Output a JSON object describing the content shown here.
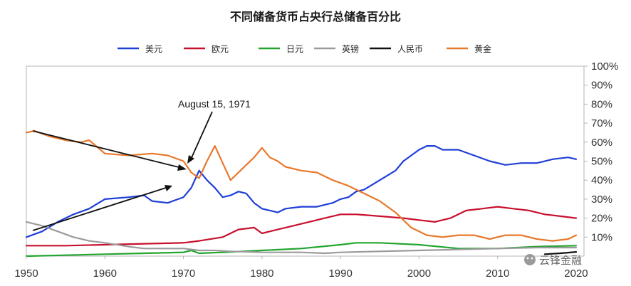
{
  "chart_data": {
    "type": "line",
    "title": "不同储备货币占央行总储备百分比",
    "xlim": [
      1950,
      2021
    ],
    "ylim": [
      0,
      100
    ],
    "x_ticks": [
      "1950",
      "1960",
      "1970",
      "1980",
      "1990",
      "2000",
      "2010",
      "2020"
    ],
    "y_ticks": [
      "10%",
      "20%",
      "30%",
      "40%",
      "50%",
      "60%",
      "70%",
      "80%",
      "90%",
      "100%"
    ],
    "y_axis_side": "right",
    "grid": false,
    "legend_position": "top",
    "annotation": {
      "text": "August 15, 1971",
      "x": 1971.6
    },
    "series": [
      {
        "name": "美元",
        "color": "#1e3fd8",
        "points": [
          [
            1950,
            10
          ],
          [
            1952,
            13
          ],
          [
            1954,
            18
          ],
          [
            1956,
            22
          ],
          [
            1958,
            25
          ],
          [
            1960,
            30
          ],
          [
            1963,
            31
          ],
          [
            1965,
            32
          ],
          [
            1966,
            29
          ],
          [
            1968,
            28
          ],
          [
            1970,
            31
          ],
          [
            1971,
            36
          ],
          [
            1972,
            45
          ],
          [
            1973,
            40
          ],
          [
            1974,
            36
          ],
          [
            1975,
            31
          ],
          [
            1976,
            32
          ],
          [
            1977,
            34
          ],
          [
            1978,
            33
          ],
          [
            1979,
            28
          ],
          [
            1980,
            25
          ],
          [
            1981,
            24
          ],
          [
            1982,
            23
          ],
          [
            1983,
            25
          ],
          [
            1985,
            26
          ],
          [
            1987,
            26
          ],
          [
            1989,
            28
          ],
          [
            1990,
            30
          ],
          [
            1991,
            31
          ],
          [
            1992,
            34
          ],
          [
            1993,
            35
          ],
          [
            1995,
            40
          ],
          [
            1997,
            45
          ],
          [
            1998,
            50
          ],
          [
            2000,
            56
          ],
          [
            2001,
            58
          ],
          [
            2002,
            58
          ],
          [
            2003,
            56
          ],
          [
            2005,
            56
          ],
          [
            2007,
            53
          ],
          [
            2009,
            50
          ],
          [
            2011,
            48
          ],
          [
            2013,
            49
          ],
          [
            2015,
            49
          ],
          [
            2017,
            51
          ],
          [
            2019,
            52
          ],
          [
            2020,
            51
          ]
        ]
      },
      {
        "name": "欧元",
        "color": "#c8102e",
        "points": [
          [
            1950,
            5.5
          ],
          [
            1955,
            5.5
          ],
          [
            1960,
            6
          ],
          [
            1965,
            6.5
          ],
          [
            1970,
            7
          ],
          [
            1972,
            8
          ],
          [
            1975,
            10
          ],
          [
            1977,
            14
          ],
          [
            1979,
            15
          ],
          [
            1980,
            12
          ],
          [
            1982,
            14
          ],
          [
            1984,
            16
          ],
          [
            1986,
            18
          ],
          [
            1988,
            20
          ],
          [
            1990,
            22
          ],
          [
            1992,
            22
          ],
          [
            1995,
            21
          ],
          [
            1998,
            20
          ],
          [
            2000,
            19
          ],
          [
            2002,
            18
          ],
          [
            2004,
            20
          ],
          [
            2006,
            24
          ],
          [
            2008,
            25
          ],
          [
            2010,
            26
          ],
          [
            2012,
            25
          ],
          [
            2014,
            24
          ],
          [
            2016,
            22
          ],
          [
            2018,
            21
          ],
          [
            2020,
            20
          ]
        ]
      },
      {
        "name": "日元",
        "color": "#22a52e",
        "points": [
          [
            1950,
            0
          ],
          [
            1955,
            0.5
          ],
          [
            1960,
            1
          ],
          [
            1965,
            1.5
          ],
          [
            1970,
            2
          ],
          [
            1971,
            3
          ],
          [
            1972,
            1.5
          ],
          [
            1975,
            2
          ],
          [
            1980,
            3
          ],
          [
            1985,
            4
          ],
          [
            1990,
            6
          ],
          [
            1992,
            7
          ],
          [
            1995,
            7
          ],
          [
            2000,
            6
          ],
          [
            2005,
            4
          ],
          [
            2010,
            4
          ],
          [
            2015,
            5
          ],
          [
            2020,
            5.5
          ]
        ]
      },
      {
        "name": "英镑",
        "color": "#9b9b9b",
        "points": [
          [
            1950,
            18
          ],
          [
            1952,
            16
          ],
          [
            1954,
            13
          ],
          [
            1956,
            10
          ],
          [
            1958,
            8
          ],
          [
            1960,
            7
          ],
          [
            1963,
            5
          ],
          [
            1965,
            4
          ],
          [
            1968,
            4
          ],
          [
            1970,
            4
          ],
          [
            1972,
            3
          ],
          [
            1974,
            3
          ],
          [
            1976,
            2.5
          ],
          [
            1980,
            2
          ],
          [
            1985,
            2
          ],
          [
            1988,
            1.5
          ],
          [
            1990,
            2
          ],
          [
            1995,
            2.5
          ],
          [
            2000,
            3
          ],
          [
            2005,
            3.5
          ],
          [
            2010,
            4
          ],
          [
            2015,
            4.5
          ],
          [
            2020,
            4.5
          ]
        ]
      },
      {
        "name": "人民币",
        "color": "#111111",
        "points": [
          [
            2016,
            1
          ],
          [
            2018,
            1.5
          ],
          [
            2020,
            2.2
          ]
        ]
      },
      {
        "name": "黄金",
        "color": "#e8782c",
        "points": [
          [
            1950,
            65
          ],
          [
            1951,
            66
          ],
          [
            1953,
            63
          ],
          [
            1955,
            61
          ],
          [
            1957,
            60
          ],
          [
            1958,
            61
          ],
          [
            1960,
            54
          ],
          [
            1963,
            53
          ],
          [
            1966,
            54
          ],
          [
            1968,
            53
          ],
          [
            1970,
            50
          ],
          [
            1971,
            44
          ],
          [
            1972,
            41
          ],
          [
            1973,
            50
          ],
          [
            1974,
            58
          ],
          [
            1975,
            49
          ],
          [
            1976,
            40
          ],
          [
            1977,
            44
          ],
          [
            1978,
            48
          ],
          [
            1979,
            52
          ],
          [
            1980,
            57
          ],
          [
            1981,
            52
          ],
          [
            1982,
            50
          ],
          [
            1983,
            47
          ],
          [
            1985,
            45
          ],
          [
            1987,
            44
          ],
          [
            1989,
            40
          ],
          [
            1991,
            37
          ],
          [
            1993,
            33
          ],
          [
            1995,
            29
          ],
          [
            1997,
            23
          ],
          [
            1999,
            15
          ],
          [
            2001,
            11
          ],
          [
            2003,
            10
          ],
          [
            2005,
            11
          ],
          [
            2007,
            11
          ],
          [
            2009,
            9
          ],
          [
            2011,
            11
          ],
          [
            2013,
            11
          ],
          [
            2015,
            9
          ],
          [
            2017,
            8
          ],
          [
            2019,
            9
          ],
          [
            2020,
            11
          ]
        ]
      }
    ]
  },
  "watermark": "云锋金融"
}
